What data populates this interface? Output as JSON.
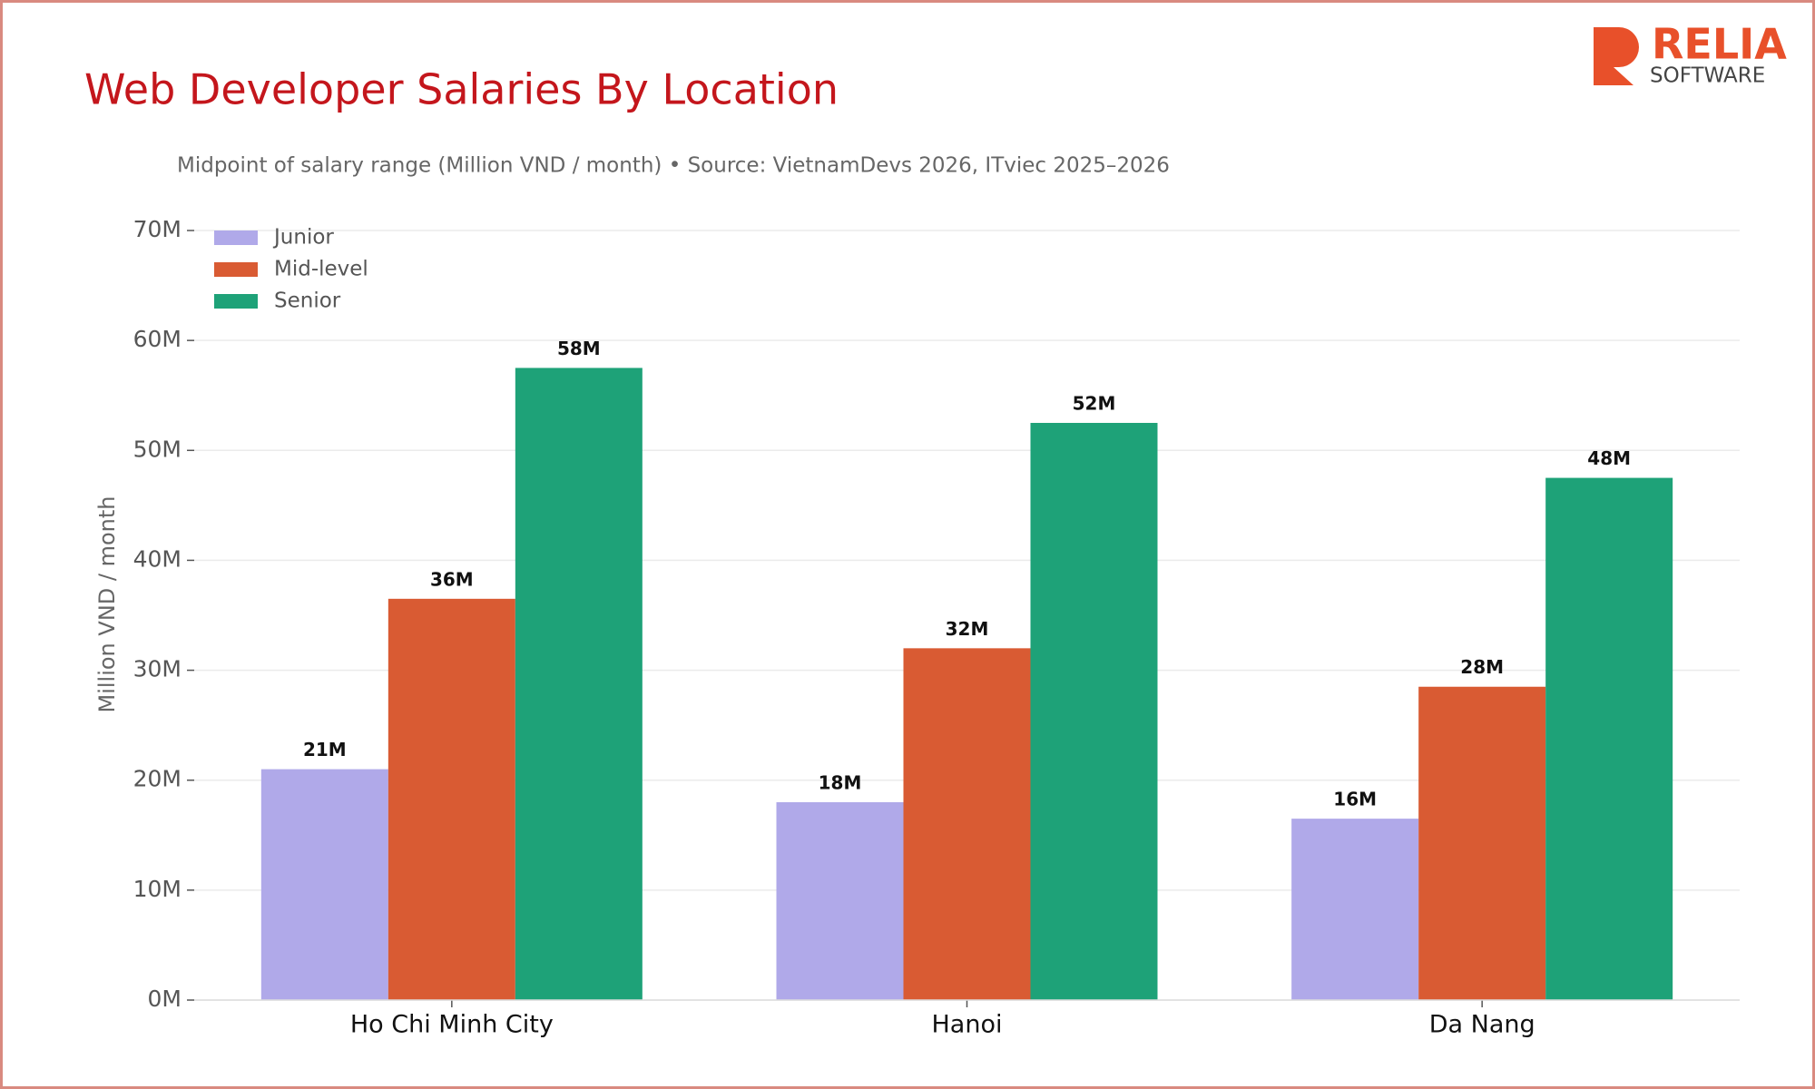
{
  "logo": {
    "name": "RELIA",
    "tagline": "SOFTWARE"
  },
  "chart_data": {
    "type": "bar",
    "title": "Web Developer Salaries By Location",
    "subtitle": "Midpoint of salary range (Million VND / month)  •  Source: VietnamDevs 2026, ITviec 2025–2026",
    "y_label": "Million VND / month",
    "categories": [
      "Ho Chi Minh City",
      "Hanoi",
      "Da Nang"
    ],
    "series": [
      {
        "name": "Junior",
        "color": "#b0a9e9",
        "values": [
          21,
          18,
          16.5
        ],
        "value_labels": [
          "21M",
          "18M",
          "16M"
        ]
      },
      {
        "name": "Mid-level",
        "color": "#d95b33",
        "values": [
          36.5,
          32,
          28.5
        ],
        "value_labels": [
          "36M",
          "32M",
          "28M"
        ]
      },
      {
        "name": "Senior",
        "color": "#1ea278",
        "values": [
          57.5,
          52.5,
          47.5
        ],
        "value_labels": [
          "58M",
          "52M",
          "48M"
        ]
      }
    ],
    "ylim": [
      0,
      70
    ],
    "yticks": [
      {
        "value": 0,
        "label": "0M"
      },
      {
        "value": 10,
        "label": "10M"
      },
      {
        "value": 20,
        "label": "20M"
      },
      {
        "value": 30,
        "label": "30M"
      },
      {
        "value": 40,
        "label": "40M"
      },
      {
        "value": 50,
        "label": "50M"
      },
      {
        "value": 60,
        "label": "60M"
      },
      {
        "value": 70,
        "label": "70M"
      }
    ],
    "grid": true,
    "legend": "upper left"
  }
}
